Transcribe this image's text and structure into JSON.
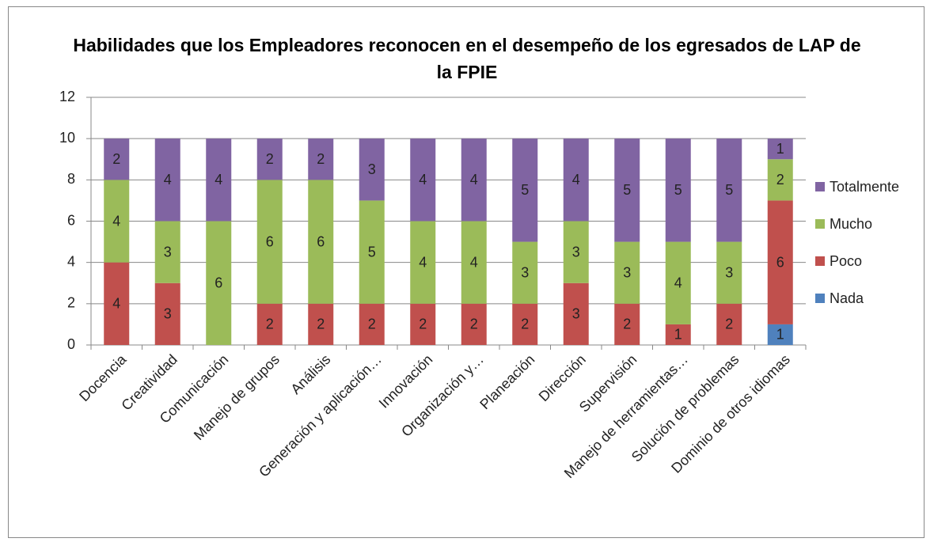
{
  "chart_data": {
    "type": "stacked_bar",
    "title": "Habilidades que los Empleadores reconocen en el desempeño de los egresados de LAP de la FPIE",
    "categories": [
      "Docencia",
      "Creatividad",
      "Comunicación",
      "Manejo de grupos",
      "Análisis",
      "Generación y aplicación…",
      "Innovación",
      "Organización y…",
      "Planeación",
      "Dirección",
      "Supervisión",
      "Manejo de herramientas…",
      "Solución de problemas",
      "Dominio de otros idiomas"
    ],
    "series": [
      {
        "name": "Nada",
        "color": "#4f81bd",
        "values": [
          null,
          null,
          null,
          null,
          null,
          null,
          null,
          null,
          null,
          null,
          null,
          null,
          null,
          1
        ]
      },
      {
        "name": "Poco",
        "color": "#c0504d",
        "values": [
          4,
          3,
          null,
          2,
          2,
          2,
          2,
          2,
          2,
          3,
          2,
          1,
          2,
          6
        ]
      },
      {
        "name": "Mucho",
        "color": "#9bbb59",
        "values": [
          4,
          3,
          6,
          6,
          6,
          5,
          4,
          4,
          3,
          3,
          3,
          4,
          3,
          2
        ]
      },
      {
        "name": "Totalmente",
        "color": "#8064a2",
        "values": [
          2,
          4,
          4,
          2,
          2,
          3,
          4,
          4,
          5,
          4,
          5,
          5,
          5,
          1
        ]
      }
    ],
    "ylim": [
      0,
      12
    ],
    "yticks": [
      0,
      2,
      4,
      6,
      8,
      10,
      12
    ],
    "grid": true,
    "legend": "right"
  }
}
